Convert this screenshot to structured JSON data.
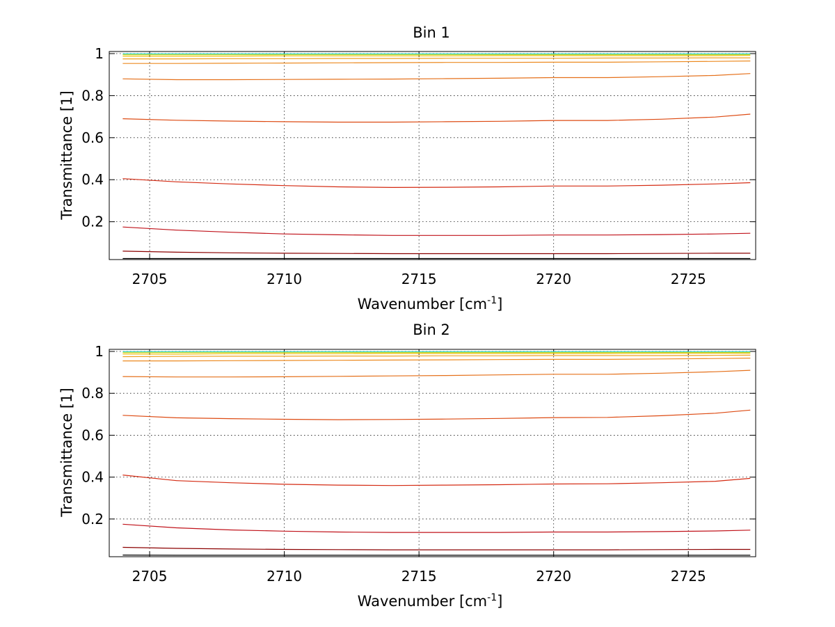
{
  "chart_data": [
    {
      "type": "line",
      "title": "Bin 1",
      "xlabel": "Wavenumber [cm",
      "xlabel_sup": "-1",
      "xlabel_tail": "]",
      "ylabel": "Transmittance [1]",
      "xlim": [
        2703.5,
        2727.5
      ],
      "ylim": [
        0.02,
        1.01
      ],
      "xticks": [
        2705,
        2710,
        2715,
        2720,
        2725
      ],
      "xtick_labels": [
        "2705",
        "2710",
        "2715",
        "2720",
        "2725"
      ],
      "yticks": [
        0.2,
        0.4,
        0.6,
        0.8,
        1
      ],
      "ytick_labels": [
        "0.2",
        "0.4",
        "0.6",
        "0.8",
        "1"
      ],
      "grid": true,
      "x": [
        2704,
        2706,
        2708,
        2710,
        2712,
        2714,
        2716,
        2718,
        2720,
        2722,
        2724,
        2726,
        2727.3
      ],
      "series": [
        {
          "color": "#000000",
          "values": [
            0.025,
            0.025,
            0.025,
            0.025,
            0.025,
            0.025,
            0.025,
            0.025,
            0.025,
            0.025,
            0.025,
            0.025,
            0.025
          ]
        },
        {
          "color": "#8b0000",
          "values": [
            0.06,
            0.055,
            0.052,
            0.05,
            0.049,
            0.048,
            0.048,
            0.048,
            0.048,
            0.048,
            0.049,
            0.05,
            0.05
          ]
        },
        {
          "color": "#c0121a",
          "values": [
            0.175,
            0.16,
            0.15,
            0.142,
            0.138,
            0.135,
            0.135,
            0.135,
            0.137,
            0.137,
            0.139,
            0.142,
            0.145
          ]
        },
        {
          "color": "#d42a12",
          "values": [
            0.405,
            0.39,
            0.38,
            0.372,
            0.366,
            0.363,
            0.364,
            0.366,
            0.37,
            0.37,
            0.374,
            0.38,
            0.386
          ]
        },
        {
          "color": "#dd4a12",
          "values": [
            0.69,
            0.683,
            0.679,
            0.676,
            0.674,
            0.674,
            0.676,
            0.678,
            0.682,
            0.682,
            0.688,
            0.698,
            0.712
          ]
        },
        {
          "color": "#e5701a",
          "values": [
            0.88,
            0.876,
            0.876,
            0.877,
            0.878,
            0.879,
            0.881,
            0.883,
            0.886,
            0.886,
            0.89,
            0.896,
            0.905
          ]
        },
        {
          "color": "#ec8a20",
          "values": [
            0.953,
            0.953,
            0.954,
            0.955,
            0.956,
            0.957,
            0.958,
            0.958,
            0.959,
            0.959,
            0.961,
            0.963,
            0.965
          ]
        },
        {
          "color": "#f0a020",
          "values": [
            0.975,
            0.975,
            0.976,
            0.976,
            0.977,
            0.977,
            0.978,
            0.978,
            0.978,
            0.979,
            0.979,
            0.98,
            0.98
          ]
        },
        {
          "color": "#f0c010",
          "values": [
            0.988,
            0.988,
            0.988,
            0.989,
            0.989,
            0.989,
            0.989,
            0.99,
            0.99,
            0.99,
            0.99,
            0.99,
            0.991
          ]
        },
        {
          "color": "#c8d820",
          "values": [
            0.995,
            0.995,
            0.995,
            0.995,
            0.995,
            0.995,
            0.995,
            0.995,
            0.995,
            0.995,
            0.995,
            0.995,
            0.995
          ]
        },
        {
          "color": "#20d0c0",
          "values": [
            0.999,
            0.999,
            0.999,
            0.999,
            0.999,
            0.999,
            0.999,
            0.999,
            0.999,
            0.999,
            0.999,
            0.999,
            0.999
          ]
        }
      ]
    },
    {
      "type": "line",
      "title": "Bin 2",
      "xlabel": "Wavenumber [cm",
      "xlabel_sup": "-1",
      "xlabel_tail": "]",
      "ylabel": "Transmittance [1]",
      "xlim": [
        2703.5,
        2727.5
      ],
      "ylim": [
        0.02,
        1.01
      ],
      "xticks": [
        2705,
        2710,
        2715,
        2720,
        2725
      ],
      "xtick_labels": [
        "2705",
        "2710",
        "2715",
        "2720",
        "2725"
      ],
      "yticks": [
        0.2,
        0.4,
        0.6,
        0.8,
        1
      ],
      "ytick_labels": [
        "0.2",
        "0.4",
        "0.6",
        "0.8",
        "1"
      ],
      "grid": true,
      "x": [
        2704,
        2706,
        2708,
        2710,
        2712,
        2714,
        2716,
        2718,
        2720,
        2722,
        2724,
        2726,
        2727.3
      ],
      "series": [
        {
          "color": "#000000",
          "values": [
            0.028,
            0.027,
            0.027,
            0.027,
            0.027,
            0.027,
            0.027,
            0.027,
            0.027,
            0.027,
            0.027,
            0.027,
            0.027
          ]
        },
        {
          "color": "#8b0000",
          "values": [
            0.065,
            0.06,
            0.057,
            0.055,
            0.054,
            0.053,
            0.053,
            0.053,
            0.053,
            0.053,
            0.054,
            0.055,
            0.055
          ]
        },
        {
          "color": "#c0121a",
          "values": [
            0.175,
            0.158,
            0.148,
            0.142,
            0.138,
            0.136,
            0.136,
            0.136,
            0.138,
            0.138,
            0.14,
            0.143,
            0.147
          ]
        },
        {
          "color": "#d42a12",
          "values": [
            0.41,
            0.383,
            0.373,
            0.366,
            0.362,
            0.36,
            0.362,
            0.364,
            0.367,
            0.368,
            0.373,
            0.38,
            0.394
          ]
        },
        {
          "color": "#dd4a12",
          "values": [
            0.695,
            0.683,
            0.679,
            0.676,
            0.674,
            0.675,
            0.677,
            0.68,
            0.684,
            0.685,
            0.693,
            0.705,
            0.72
          ]
        },
        {
          "color": "#e5701a",
          "values": [
            0.88,
            0.878,
            0.878,
            0.879,
            0.881,
            0.883,
            0.885,
            0.888,
            0.891,
            0.891,
            0.896,
            0.903,
            0.91
          ]
        },
        {
          "color": "#ec8a20",
          "values": [
            0.955,
            0.955,
            0.956,
            0.957,
            0.958,
            0.959,
            0.96,
            0.961,
            0.962,
            0.962,
            0.964,
            0.966,
            0.968
          ]
        },
        {
          "color": "#f0a020",
          "values": [
            0.975,
            0.976,
            0.977,
            0.977,
            0.978,
            0.978,
            0.979,
            0.979,
            0.98,
            0.98,
            0.98,
            0.981,
            0.982
          ]
        },
        {
          "color": "#f0c010",
          "values": [
            0.988,
            0.987,
            0.989,
            0.989,
            0.989,
            0.99,
            0.99,
            0.99,
            0.99,
            0.99,
            0.991,
            0.991,
            0.991
          ]
        },
        {
          "color": "#c8d820",
          "values": [
            0.995,
            0.995,
            0.995,
            0.995,
            0.995,
            0.995,
            0.995,
            0.995,
            0.995,
            0.995,
            0.995,
            0.995,
            0.995
          ]
        },
        {
          "color": "#20d0c0",
          "values": [
            0.999,
            0.999,
            0.999,
            0.999,
            0.999,
            0.999,
            0.999,
            0.999,
            0.999,
            0.999,
            0.999,
            0.999,
            0.999
          ]
        }
      ]
    }
  ]
}
